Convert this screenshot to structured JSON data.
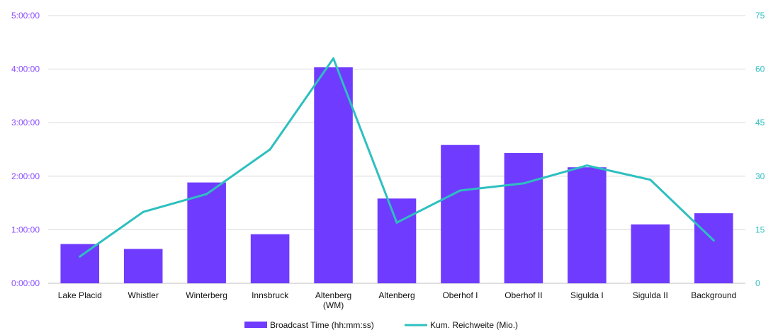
{
  "chart_data": {
    "type": "bar+line",
    "categories": [
      [
        "Lake Placid"
      ],
      [
        "Whistler"
      ],
      [
        "Winterberg"
      ],
      [
        "Innsbruck"
      ],
      [
        "Altenberg",
        "(WM)"
      ],
      [
        "Altenberg"
      ],
      [
        "Oberhof I"
      ],
      [
        "Oberhof II"
      ],
      [
        "Sigulda I"
      ],
      [
        "Sigulda II"
      ],
      [
        "Background"
      ]
    ],
    "series": [
      {
        "name": "Broadcast Time (hh:mm:ss)",
        "type": "bar",
        "axis": "left",
        "values": [
          "0:44:00",
          "0:38:30",
          "1:53:00",
          "0:55:00",
          "4:02:00",
          "1:35:00",
          "2:35:00",
          "2:26:00",
          "2:10:00",
          "1:06:00",
          "1:18:30"
        ]
      },
      {
        "name": "Kum. Reichweite (Mio.)",
        "type": "line",
        "axis": "right",
        "values": [
          7.5,
          20,
          25,
          37.5,
          63,
          17,
          26,
          28,
          33,
          29,
          12
        ]
      }
    ],
    "y_left": {
      "ticks": [
        "0:00:00",
        "1:00:00",
        "2:00:00",
        "3:00:00",
        "4:00:00",
        "5:00:00"
      ],
      "range": [
        "0:00:00",
        "5:00:00"
      ]
    },
    "y_right": {
      "ticks": [
        "0",
        "15",
        "30",
        "45",
        "60",
        "75"
      ],
      "range": [
        0,
        75
      ]
    },
    "grid": true,
    "legend_position": "bottom-center"
  },
  "colors": {
    "bar": "#6F3BFF",
    "line": "#2EBFBF",
    "left_axis_text": "#8A4BFF",
    "right_axis_text": "#2EBFBF",
    "grid": "#D9D9D9",
    "axis_line": "#BFBFBF"
  }
}
